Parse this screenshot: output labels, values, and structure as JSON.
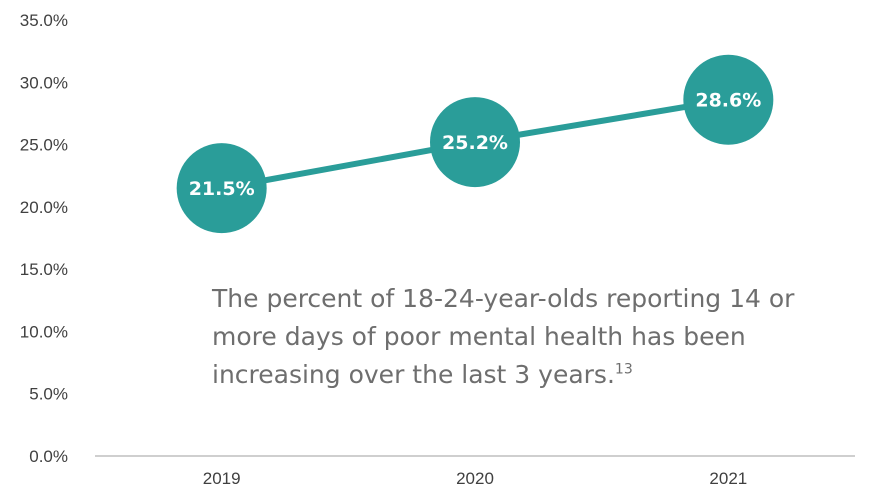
{
  "chart_data": {
    "type": "line",
    "categories": [
      "2019",
      "2020",
      "2021"
    ],
    "series": [
      {
        "values": [
          21.5,
          25.2,
          28.6
        ],
        "labels": [
          "21.5%",
          "25.2%",
          "28.6%"
        ]
      }
    ],
    "ylim": [
      0,
      35
    ],
    "y_ticks": [
      "0.0%",
      "5.0%",
      "10.0%",
      "15.0%",
      "20.0%",
      "25.0%",
      "30.0%",
      "35.0%"
    ],
    "grid": false,
    "legend": "none",
    "annotation": {
      "lines": [
        "The percent of 18-24-year-olds reporting 14 or",
        "more days of poor mental health has been",
        "increasing over the last 3 years."
      ],
      "footnote": "13"
    },
    "colors": {
      "series": "#2a9d99",
      "axis": "#bfbfbf",
      "tick_text": "#404040",
      "annotation_text": "#6e6e6e"
    }
  }
}
